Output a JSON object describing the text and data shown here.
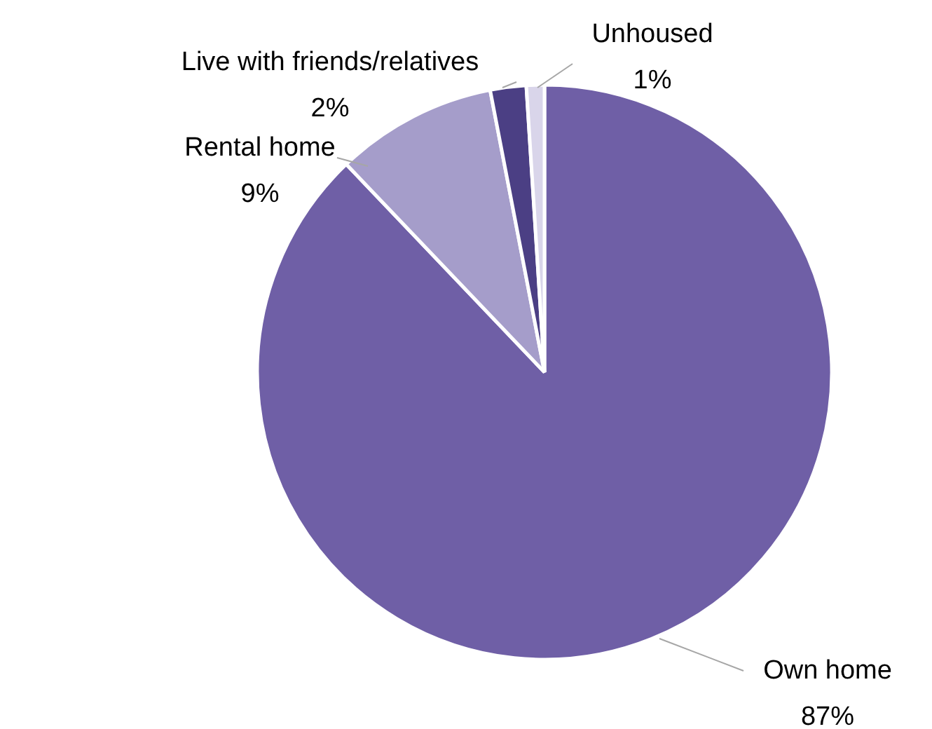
{
  "chart_data": {
    "type": "pie",
    "categories": [
      "Own home",
      "Rental home",
      "Live with friends/relatives",
      "Unhoused"
    ],
    "values": [
      87,
      9,
      2,
      1
    ],
    "value_labels": [
      "87%",
      "9%",
      "2%",
      "1%"
    ],
    "colors": [
      "#6f5fa6",
      "#a59dca",
      "#4b3f84",
      "#d9d5ea"
    ]
  }
}
